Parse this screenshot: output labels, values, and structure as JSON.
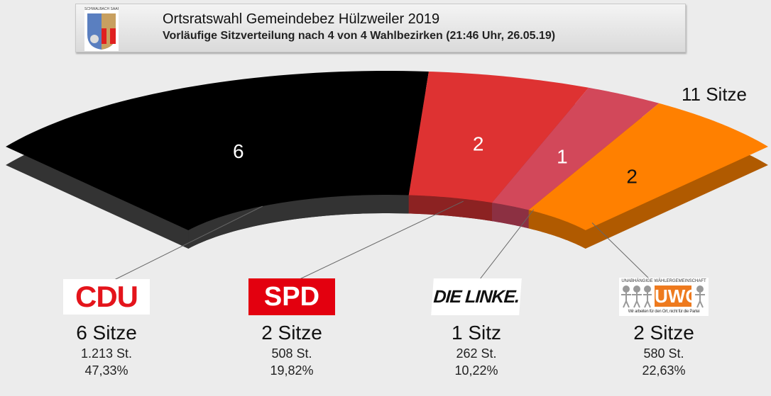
{
  "header": {
    "title": "Ortsratswahl Gemeindebez Hülzweiler 2019",
    "subtitle": "Vorläufige Sitzverteilung nach 4 von 4 Wahlbezirken (21:46 Uhr, 26.05.19)",
    "crest_text": "SCHWALBACH SAAR"
  },
  "chart_data": {
    "type": "pie",
    "subtype": "semicircle-parliament",
    "total_label": "11 Sitze",
    "categories": [
      "CDU",
      "SPD",
      "DIE LINKE.",
      "UWG"
    ],
    "values": [
      6,
      2,
      1,
      2
    ],
    "colors": [
      "#000000",
      "#de3232",
      "#d2485a",
      "#ff8000"
    ],
    "side_colors": [
      "#333333",
      "#8c2222",
      "#8c3042",
      "#b05a00"
    ],
    "label_colors": [
      "#ffffff",
      "#ffffff",
      "#ffffff",
      "#111111"
    ]
  },
  "parties": [
    {
      "name": "CDU",
      "seats": "6 Sitze",
      "votes": "1.213 St.",
      "percent": "47,33%"
    },
    {
      "name": "SPD",
      "seats": "2 Sitze",
      "votes": "508 St.",
      "percent": "19,82%"
    },
    {
      "name": "DIE LINKE.",
      "seats": "1 Sitz",
      "votes": "262 St.",
      "percent": "10,22%"
    },
    {
      "name": "UWG",
      "seats": "2 Sitze",
      "votes": "580 St.",
      "percent": "22,63%",
      "logo_top": "UNABHÄNGIGE WÄHLERGEMEINSCHAFT",
      "logo_bottom": "Wir arbeiten für den Ort, nicht für die Partei"
    }
  ]
}
